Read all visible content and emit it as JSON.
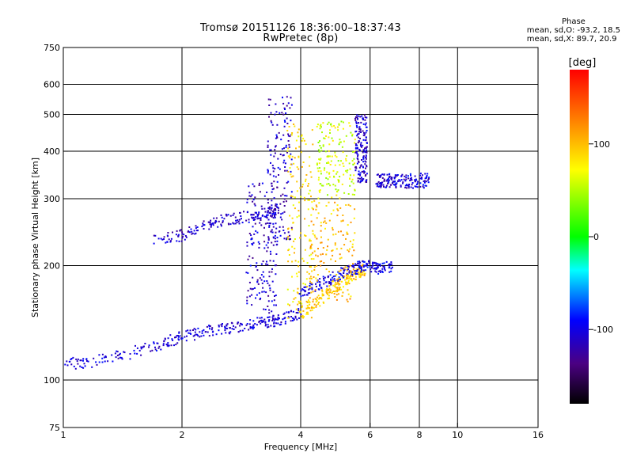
{
  "header": {
    "title_line1": "Tromsø 20151126 18:36:00–18:37:43",
    "title_line2": "RwPretec (8p)"
  },
  "phase_stats": {
    "heading": "Phase",
    "o_line": "mean, sd,O: -93.2, 18.5",
    "x_line": "mean, sd,X:  89.7, 20.9"
  },
  "colorbar": {
    "unit": "[deg]",
    "range": [
      -180,
      180
    ],
    "ticks": [
      100,
      0,
      -100
    ],
    "tick_labels": [
      "100",
      "0",
      "-100"
    ]
  },
  "chart_data": {
    "type": "scatter",
    "xlabel": "Frequency [MHz]",
    "ylabel": "Stationary phase Virtual Height [km]",
    "xscale": "log",
    "yscale": "log",
    "xlim": [
      1,
      16
    ],
    "ylim": [
      75,
      750
    ],
    "xticks": [
      1,
      2,
      4,
      6,
      8,
      10,
      16
    ],
    "xtick_labels": [
      "1",
      "2",
      "4",
      "6",
      "8",
      "10",
      "16"
    ],
    "yticks": [
      75,
      100,
      200,
      300,
      400,
      500,
      600,
      750
    ],
    "ytick_labels": [
      "75",
      "100",
      "200",
      "300",
      "400",
      "500",
      "600",
      "750"
    ],
    "grid_x": [
      2,
      4,
      6,
      8,
      10
    ],
    "grid_y": [
      100,
      200,
      300,
      400,
      500,
      600
    ],
    "traces": [
      {
        "x": [
          1.0,
          1.2,
          1.5,
          1.8,
          2.0,
          2.3,
          2.6,
          3.0,
          3.3,
          3.6,
          4.0
        ],
        "y": [
          110,
          112,
          118,
          125,
          130,
          134,
          137,
          140,
          142,
          145,
          150
        ],
        "phase": -105
      },
      {
        "x": [
          4.0,
          4.4,
          4.8,
          5.2,
          5.5,
          5.8
        ],
        "y": [
          150,
          160,
          172,
          182,
          190,
          195
        ],
        "phase": 95
      },
      {
        "x": [
          4.0,
          4.4,
          4.8,
          5.2,
          5.6,
          5.9,
          6.3,
          6.8
        ],
        "y": [
          168,
          178,
          186,
          192,
          198,
          200,
          195,
          200
        ],
        "phase": -100
      },
      {
        "x": [
          1.7,
          2.0,
          2.3,
          2.6,
          3.0,
          3.3,
          3.5
        ],
        "y": [
          232,
          240,
          255,
          265,
          270,
          275,
          280
        ],
        "phase": -110
      }
    ],
    "clusters": [
      {
        "x": [
          2.9,
          3.5
        ],
        "y": [
          150,
          330
        ],
        "phase": -110
      },
      {
        "x": [
          3.3,
          3.8
        ],
        "y": [
          230,
          560
        ],
        "phase": -112
      },
      {
        "x": [
          3.7,
          4.3
        ],
        "y": [
          145,
          480
        ],
        "phase": 85
      },
      {
        "x": [
          4.2,
          5.5
        ],
        "y": [
          160,
          300
        ],
        "phase": 100
      },
      {
        "x": [
          4.4,
          5.5
        ],
        "y": [
          300,
          480
        ],
        "phase": 60
      },
      {
        "x": [
          5.5,
          5.9
        ],
        "y": [
          330,
          500
        ],
        "phase": -110
      },
      {
        "x": [
          6.2,
          8.5
        ],
        "y": [
          320,
          350
        ],
        "phase": -105
      }
    ]
  }
}
